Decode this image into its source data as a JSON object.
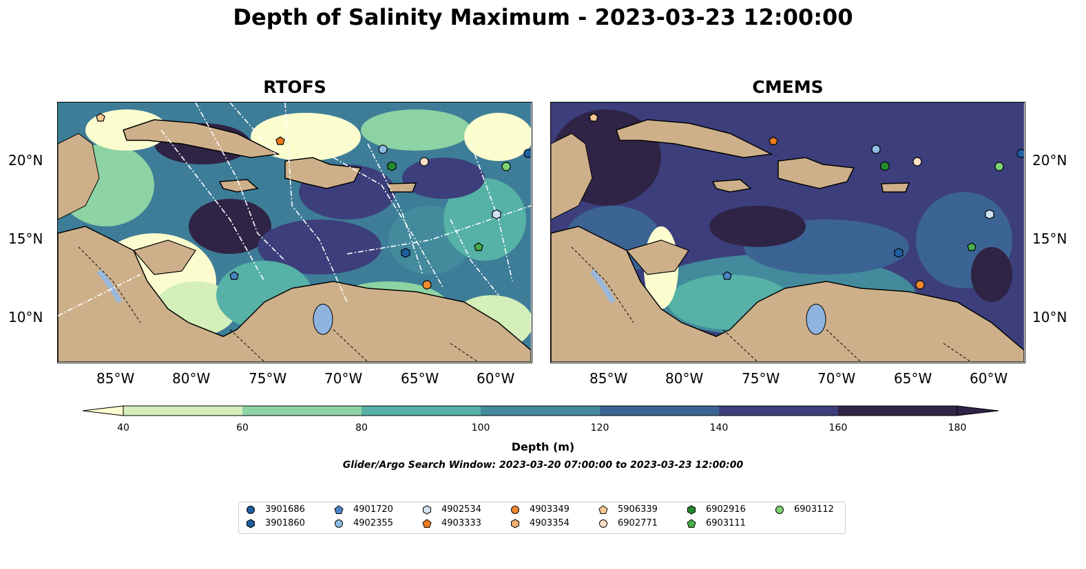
{
  "title": "Depth of Salinity Maximum - 2023-03-23 12:00:00",
  "panels": [
    {
      "title": "RTOFS"
    },
    {
      "title": "CMEMS"
    }
  ],
  "lon_ticks": [
    "85°W",
    "80°W",
    "75°W",
    "70°W",
    "65°W",
    "60°W"
  ],
  "lat_ticks": [
    "20°N",
    "15°N",
    "10°N"
  ],
  "colorbar": {
    "label": "Depth (m)",
    "ticks": [
      "40",
      "60",
      "80",
      "100",
      "120",
      "140",
      "160",
      "180"
    ],
    "colors": [
      "#fbfdcf",
      "#d4efba",
      "#8ed3a3",
      "#56b1a6",
      "#438a9c",
      "#3b6494",
      "#3c3f7c",
      "#2f2445"
    ],
    "extend": "both"
  },
  "subtitle": "Glider/Argo Search Window: 2023-03-20 07:00:00 to 2023-03-23 12:00:00",
  "legend": [
    {
      "id": "3901686",
      "marker": "circle",
      "color": "#1f5fa0"
    },
    {
      "id": "3901860",
      "marker": "hexagon",
      "color": "#1f5fa0"
    },
    {
      "id": "4901720",
      "marker": "pentagon",
      "color": "#4a86c6"
    },
    {
      "id": "4902355",
      "marker": "circle",
      "color": "#8fbde4"
    },
    {
      "id": "4902534",
      "marker": "hexagon",
      "color": "#cfe3f5"
    },
    {
      "id": "4903333",
      "marker": "pentagon",
      "color": "#f07b1c"
    },
    {
      "id": "4903349",
      "marker": "circle",
      "color": "#f28a2f"
    },
    {
      "id": "4903354",
      "marker": "hexagon",
      "color": "#f8b070"
    },
    {
      "id": "5906339",
      "marker": "pentagon",
      "color": "#f8c792"
    },
    {
      "id": "6902771",
      "marker": "circle",
      "color": "#fde0c6"
    },
    {
      "id": "6902916",
      "marker": "hexagon",
      "color": "#238b2e"
    },
    {
      "id": "6903111",
      "marker": "pentagon",
      "color": "#4aae4a"
    },
    {
      "id": "6903112",
      "marker": "circle",
      "color": "#7dd36f"
    }
  ]
}
